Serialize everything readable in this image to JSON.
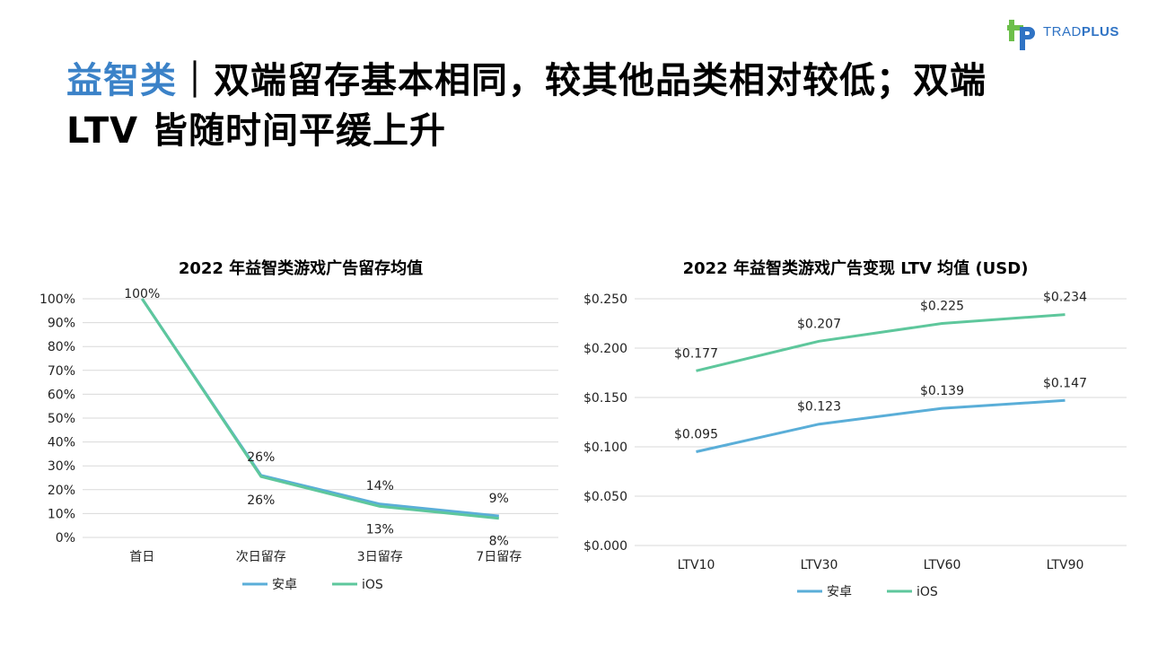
{
  "header": {
    "title_accent": "益智类",
    "title_rest": "｜双端留存基本相同，较其他品类相对较低；双端 LTV 皆随时间平缓上升",
    "logo_text_light": "TRAD",
    "logo_text_bold": "PLUS"
  },
  "colors": {
    "android": "#5aaed8",
    "ios": "#5ec79c",
    "grid": "#d9d9d9",
    "accent": "#3b82c8"
  },
  "chart_data": [
    {
      "type": "line",
      "title": "2022 年益智类游戏广告留存均值",
      "categories": [
        "首日",
        "次日留存",
        "3日留存",
        "7日留存"
      ],
      "series": [
        {
          "name": "安卓",
          "values": [
            100,
            26,
            14,
            9
          ],
          "labels": [
            "100%",
            "26%",
            "14%",
            "9%"
          ]
        },
        {
          "name": "iOS",
          "values": [
            100,
            25.5,
            13,
            8
          ],
          "labels": [
            "",
            "26%",
            "13%",
            "8%"
          ]
        }
      ],
      "ylim": [
        0,
        100
      ],
      "yticks": [
        "0%",
        "10%",
        "20%",
        "30%",
        "40%",
        "50%",
        "60%",
        "70%",
        "80%",
        "90%",
        "100%"
      ],
      "grid": true,
      "legend": "bottom"
    },
    {
      "type": "line",
      "title": "2022 年益智类游戏广告变现 LTV 均值 (USD)",
      "categories": [
        "LTV10",
        "LTV30",
        "LTV60",
        "LTV90"
      ],
      "series": [
        {
          "name": "安卓",
          "values": [
            0.095,
            0.123,
            0.139,
            0.147
          ],
          "labels": [
            "$0.095",
            "$0.123",
            "$0.139",
            "$0.147"
          ]
        },
        {
          "name": "iOS",
          "values": [
            0.177,
            0.207,
            0.225,
            0.234
          ],
          "labels": [
            "$0.177",
            "$0.207",
            "$0.225",
            "$0.234"
          ]
        }
      ],
      "ylim": [
        0,
        0.25
      ],
      "yticks": [
        "$0.000",
        "$0.050",
        "$0.100",
        "$0.150",
        "$0.200",
        "$0.250"
      ],
      "grid": true,
      "legend": "bottom"
    }
  ]
}
